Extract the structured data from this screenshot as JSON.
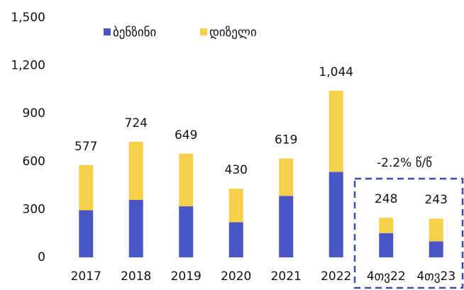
{
  "chart_data": {
    "type": "stacked_bar",
    "categories": [
      "2017",
      "2018",
      "2019",
      "2020",
      "2021",
      "2022",
      "4თვ22",
      "4თვ23"
    ],
    "series": [
      {
        "name": "ბენზინი",
        "color": "#4a56c6",
        "values": [
          295,
          360,
          320,
          220,
          385,
          535,
          152,
          100
        ]
      },
      {
        "name": "დიზელი",
        "color": "#f6d04a",
        "values": [
          282,
          364,
          329,
          210,
          234,
          509,
          96,
          143
        ]
      }
    ],
    "total_values": [
      577,
      724,
      649,
      430,
      619,
      1044,
      248,
      243
    ],
    "total_labels": [
      "577",
      "724",
      "649",
      "430",
      "619",
      "1,044",
      "248",
      "243"
    ],
    "ylim": [
      0,
      1500
    ],
    "yticks": [
      0,
      300,
      600,
      900,
      {
        "value": 1200,
        "label": "1,200"
      },
      {
        "value": 1500,
        "label": "1,500"
      }
    ],
    "annotation": "-2.2% წ/წ",
    "legend": "top-left",
    "grid": false
  }
}
